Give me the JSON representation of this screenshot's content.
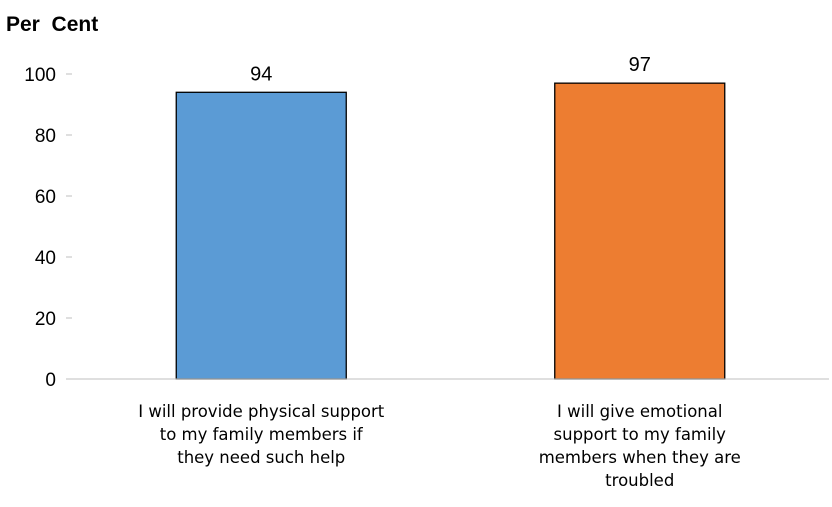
{
  "chart_data": {
    "type": "bar",
    "ylabel": "Per  Cent",
    "ylim": [
      0,
      100
    ],
    "yticks": [
      0,
      20,
      40,
      60,
      80,
      100
    ],
    "grid": false,
    "categories": [
      [
        "I will provide physical support",
        "to my family members if",
        "they need such help"
      ],
      [
        "I will give emotional",
        "support to my family",
        "members when they are",
        "troubled"
      ]
    ],
    "values": [
      94,
      97
    ],
    "data_labels": [
      "94",
      "97"
    ],
    "colors": [
      "#5B9BD5",
      "#ED7D31"
    ]
  }
}
